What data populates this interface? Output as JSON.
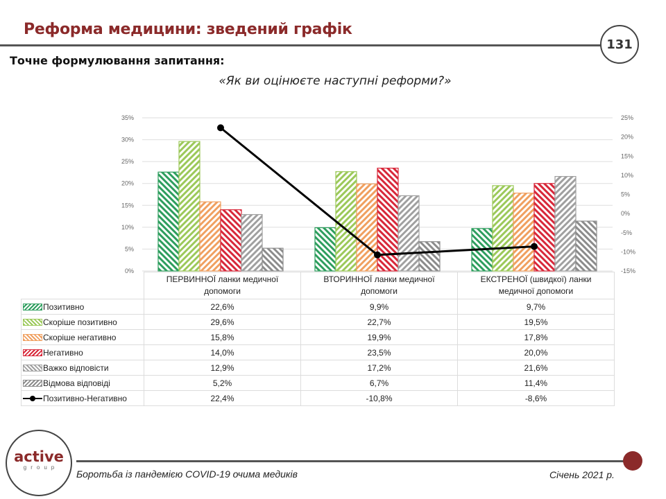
{
  "header": {
    "title": "Реформа медицини: зведений графік",
    "page_number": "131",
    "question_label": "Точне формулювання запитання:",
    "question": "«Як ви оцінюєте наступні  реформи?»"
  },
  "colors": {
    "title": "#8b2a2a",
    "positive": "#2e9e5e",
    "rather_positive": "#9cc95a",
    "rather_negative": "#f0a060",
    "negative": "#d8283a",
    "hard_to_say": "#a0a0a0",
    "refusal": "#8c8c8c",
    "net_line": "#000000"
  },
  "chart_data": {
    "type": "bar",
    "title": "«Як ви оцінюєте наступні  реформи?»",
    "categories": [
      "ПЕРВИННОЇ ланки медичної допомоги",
      "ВТОРИННОЇ ланки медичної допомоги",
      "ЕКСТРЕНОЇ (швидкої) ланки медичної допомоги"
    ],
    "category_lines": [
      [
        "ПЕРВИННОЇ ланки медичної",
        "допомоги"
      ],
      [
        "ВТОРИННОЇ ланки медичної",
        "допомоги"
      ],
      [
        "ЕКСТРЕНОЇ (швидкої) ланки",
        "медичної допомоги"
      ]
    ],
    "series": [
      {
        "name": "Позитивно",
        "type": "bar",
        "axis": "left",
        "values": [
          22.6,
          9.9,
          9.7
        ],
        "labels": [
          "22,6%",
          "9,9%",
          "9,7%"
        ]
      },
      {
        "name": "Скоріше позитивно",
        "type": "bar",
        "axis": "left",
        "values": [
          29.6,
          22.7,
          19.5
        ],
        "labels": [
          "29,6%",
          "22,7%",
          "19,5%"
        ]
      },
      {
        "name": "Скоріше негативно",
        "type": "bar",
        "axis": "left",
        "values": [
          15.8,
          19.9,
          17.8
        ],
        "labels": [
          "15,8%",
          "19,9%",
          "17,8%"
        ]
      },
      {
        "name": "Негативно",
        "type": "bar",
        "axis": "left",
        "values": [
          14.0,
          23.5,
          20.0
        ],
        "labels": [
          "14,0%",
          "23,5%",
          "20,0%"
        ]
      },
      {
        "name": "Важко відповісти",
        "type": "bar",
        "axis": "left",
        "values": [
          12.9,
          17.2,
          21.6
        ],
        "labels": [
          "12,9%",
          "17,2%",
          "21,6%"
        ]
      },
      {
        "name": "Відмова відповіді",
        "type": "bar",
        "axis": "left",
        "values": [
          5.2,
          6.7,
          11.4
        ],
        "labels": [
          "5,2%",
          "6,7%",
          "11,4%"
        ]
      },
      {
        "name": "Позитивно-Негативно",
        "type": "line",
        "axis": "right",
        "values": [
          22.4,
          -10.8,
          -8.6
        ],
        "labels": [
          "22,4%",
          "-10,8%",
          "-8,6%"
        ]
      }
    ],
    "ylim_left": [
      0,
      35
    ],
    "yticks_left": [
      "0%",
      "5%",
      "10%",
      "15%",
      "20%",
      "25%",
      "30%",
      "35%"
    ],
    "ylim_right": [
      -15,
      25
    ],
    "yticks_right": [
      "-15%",
      "-10%",
      "-5%",
      "0%",
      "5%",
      "10%",
      "15%",
      "20%",
      "25%"
    ],
    "grid": true,
    "legend_position": "data-table",
    "xlabel": "",
    "ylabel": ""
  },
  "footer": {
    "logo_main": "active",
    "logo_sub": "group",
    "caption": "Боротьба із пандемією COVID-19 очима медиків",
    "date": "Січень 2021 р."
  }
}
